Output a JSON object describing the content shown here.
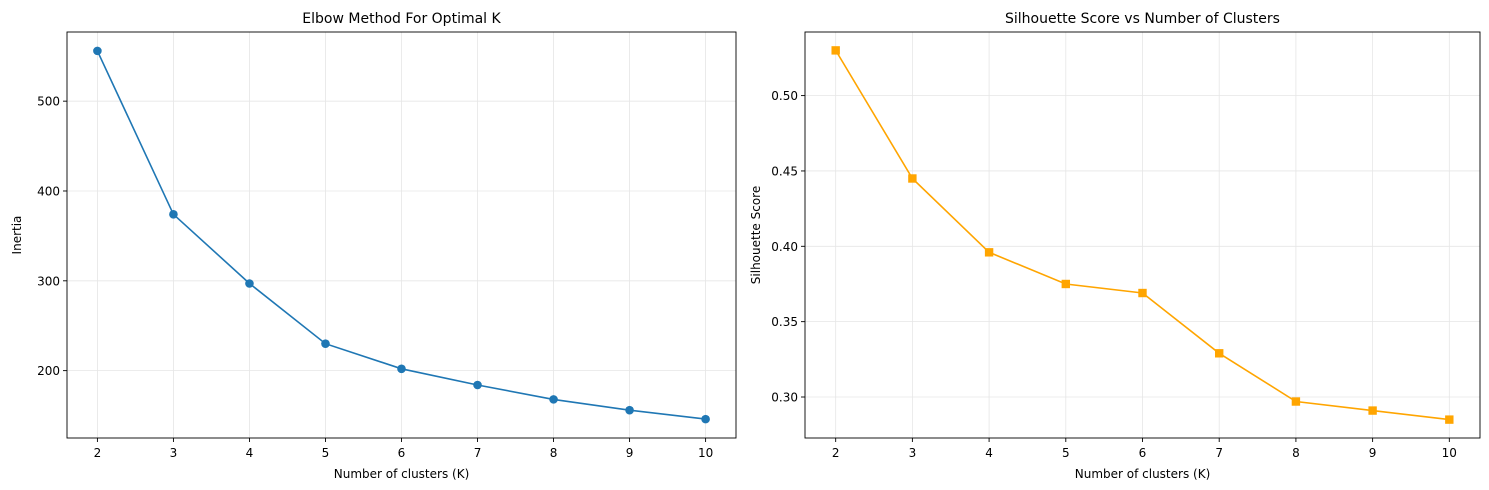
{
  "chart_data": [
    {
      "type": "line",
      "title": "Elbow Method For Optimal K",
      "xlabel": "Number of clusters (K)",
      "ylabel": "Inertia",
      "x": [
        2,
        3,
        4,
        5,
        6,
        7,
        8,
        9,
        10
      ],
      "series": [
        {
          "values": [
            556,
            374,
            297,
            230,
            202,
            184,
            168,
            156,
            146
          ],
          "color": "#1f77b4",
          "marker": "circle"
        }
      ],
      "xlim": [
        1.6,
        10.4
      ],
      "ylim": [
        125,
        577
      ],
      "xticks": [
        2,
        3,
        4,
        5,
        6,
        7,
        8,
        9,
        10
      ],
      "yticks": [
        200,
        300,
        400,
        500
      ],
      "grid": true
    },
    {
      "type": "line",
      "title": "Silhouette Score vs Number of Clusters",
      "xlabel": "Number of clusters (K)",
      "ylabel": "Silhouette Score",
      "x": [
        2,
        3,
        4,
        5,
        6,
        7,
        8,
        9,
        10
      ],
      "series": [
        {
          "values": [
            0.53,
            0.445,
            0.396,
            0.375,
            0.369,
            0.329,
            0.297,
            0.291,
            0.285
          ],
          "color": "#ffa500",
          "marker": "square"
        }
      ],
      "xlim": [
        1.6,
        10.4
      ],
      "ylim": [
        0.2728,
        0.5422
      ],
      "xticks": [
        2,
        3,
        4,
        5,
        6,
        7,
        8,
        9,
        10
      ],
      "yticks": [
        "0.30",
        "0.35",
        "0.40",
        "0.45",
        "0.50"
      ],
      "grid": true
    }
  ]
}
